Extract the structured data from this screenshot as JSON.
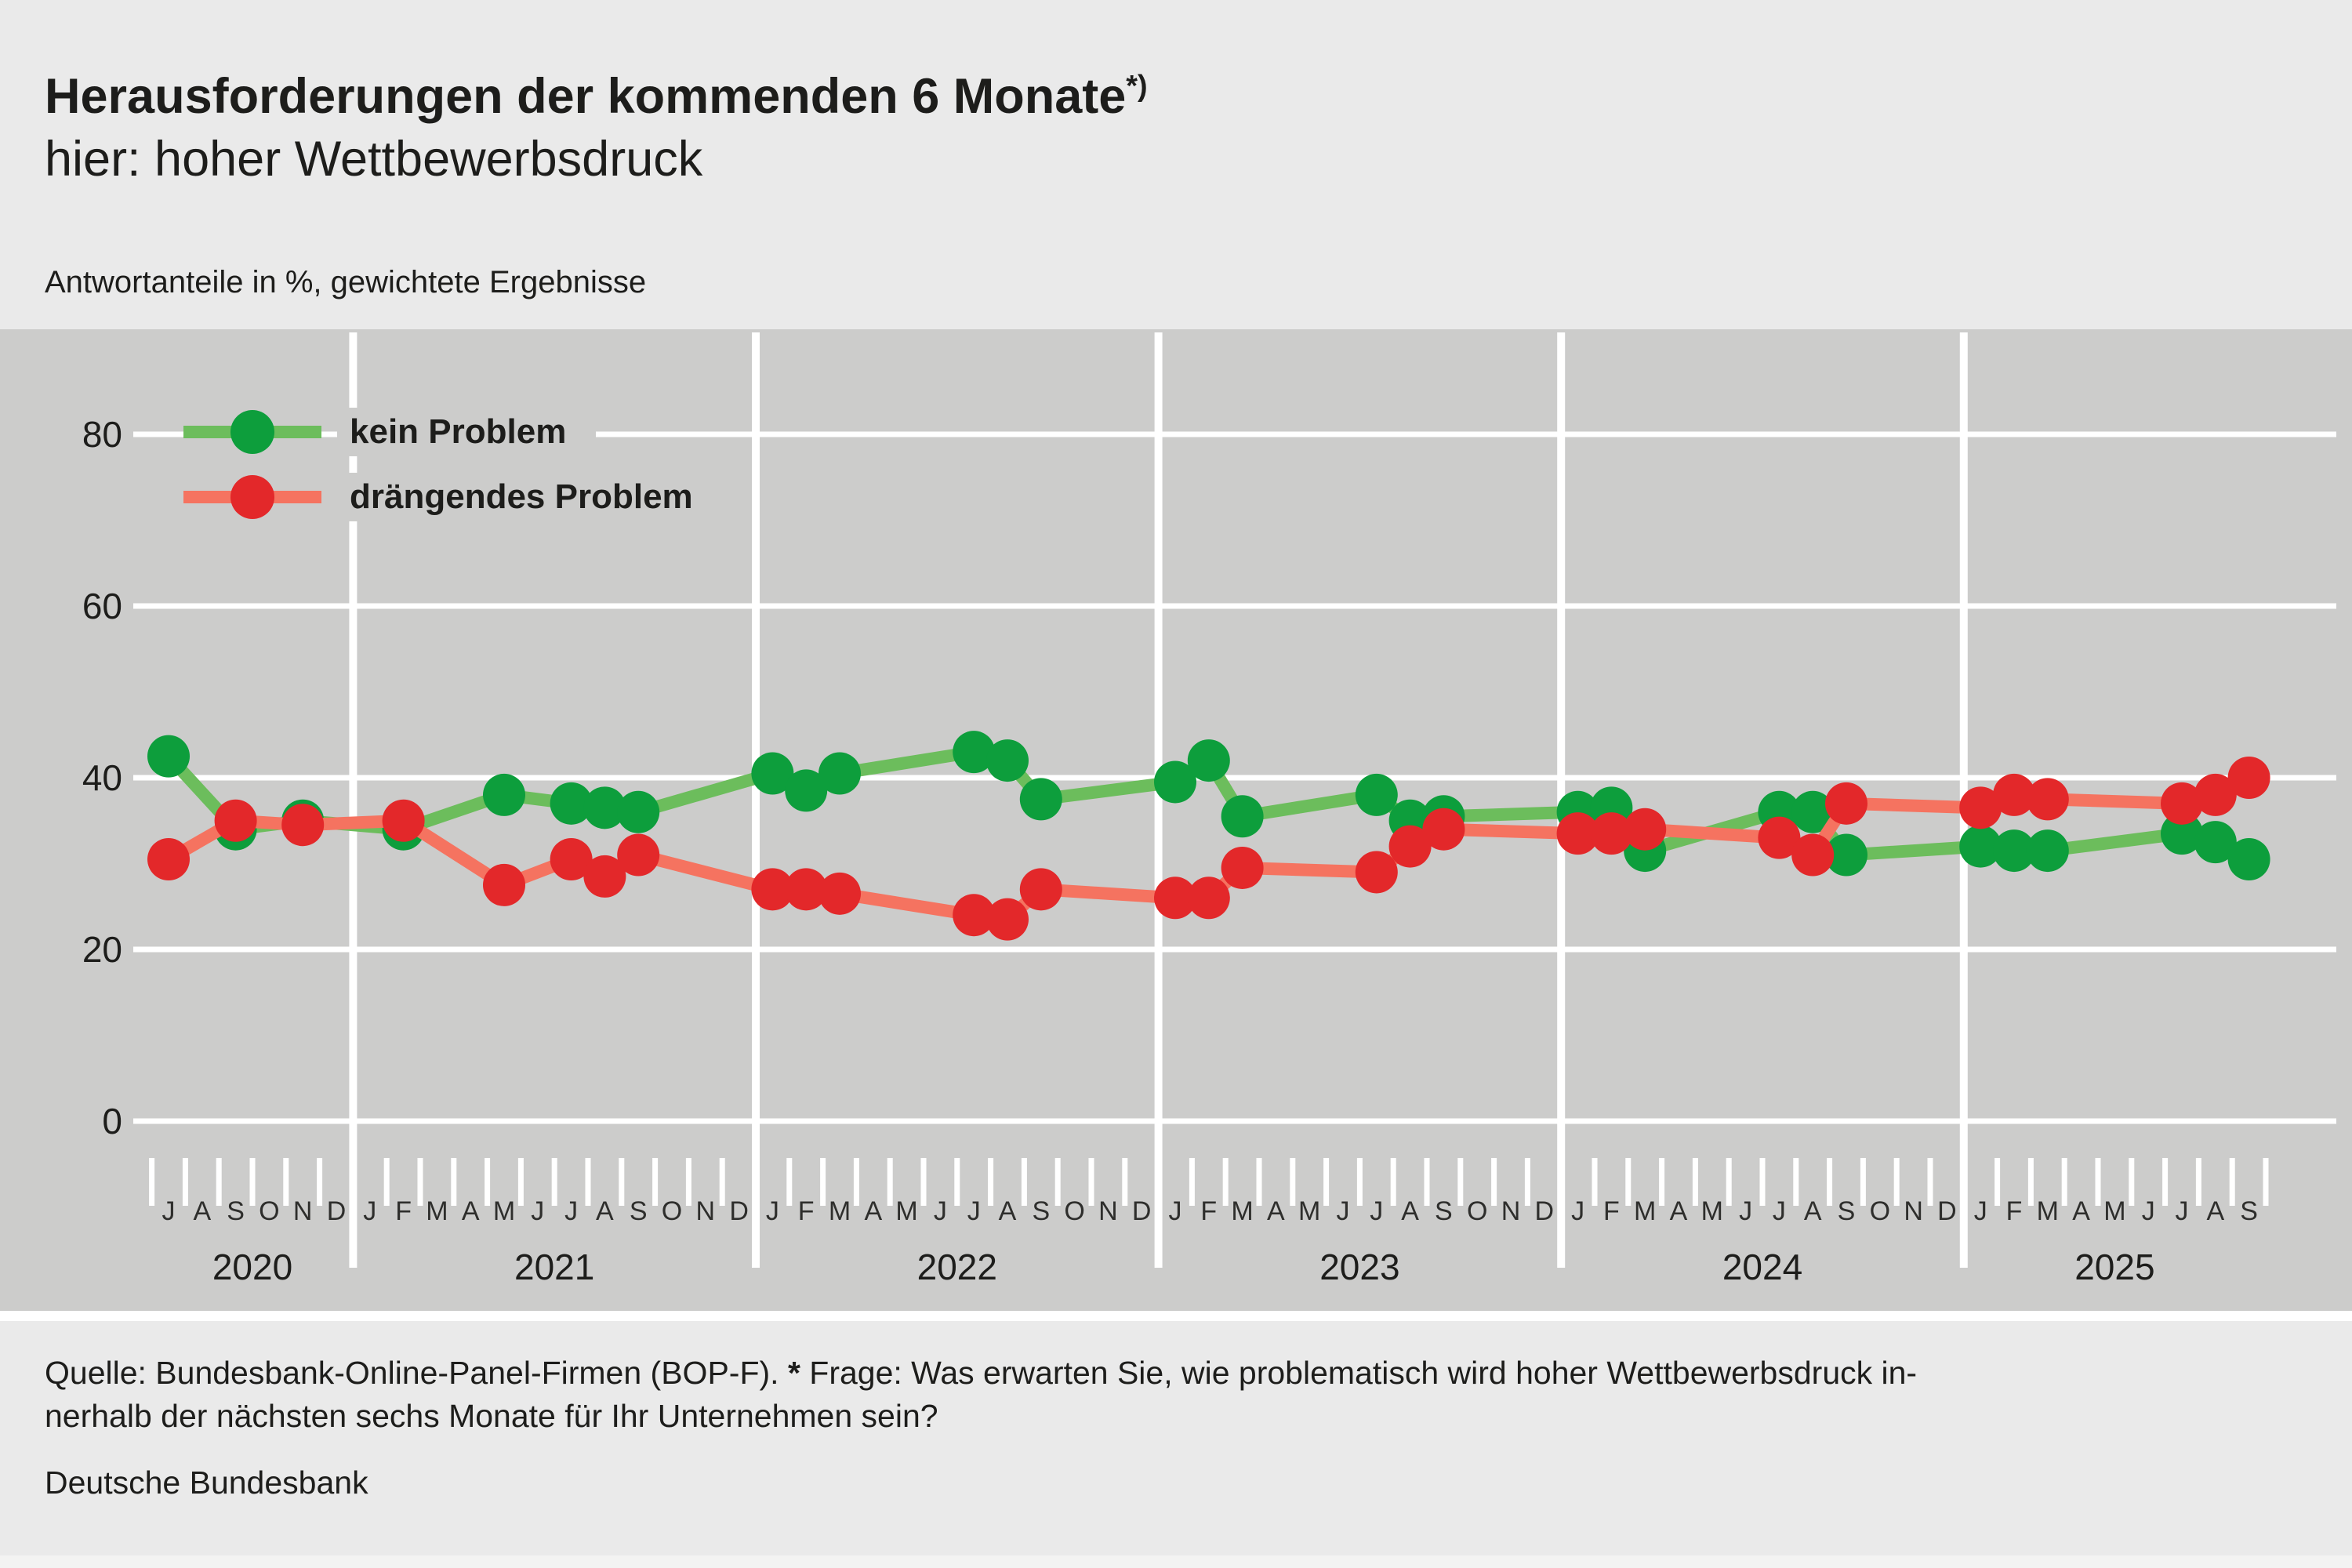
{
  "header": {
    "title": "Herausforderungen der kommenden 6 Monate",
    "title_sup": "*)",
    "subtitle": "hier: hoher Wettbewerbsdruck",
    "note": "Antwortanteile in %, gewichtete Ergebnisse"
  },
  "chart_data": {
    "type": "line",
    "title": "Herausforderungen der kommenden 6 Monate *) — hier: hoher Wettbewerbsdruck",
    "ylabel": "Antwortanteile in %, gewichtete Ergebnisse",
    "ylim": [
      0,
      85
    ],
    "yticks": [
      0,
      20,
      40,
      60,
      80
    ],
    "grid": true,
    "legend_position": "top-left",
    "colors": {
      "band_background": "#cccccb",
      "page_background": "#eaeaea",
      "gridline": "#ffffff",
      "text": "#1d1d1b"
    },
    "years": [
      {
        "label": "2020",
        "letters": "JASOND"
      },
      {
        "label": "2021",
        "letters": "JFMAMJJASOND"
      },
      {
        "label": "2022",
        "letters": "JFMAMJJASOND"
      },
      {
        "label": "2023",
        "letters": "JFMAMJJASOND"
      },
      {
        "label": "2024",
        "letters": "JFMAMJJASOND"
      },
      {
        "label": "2025",
        "letters": "JFMAMJJAS"
      }
    ],
    "series": [
      {
        "name": "kein Problem",
        "line_color": "#6cbd5c",
        "marker_color": "#0d9e3c",
        "points": [
          [
            "2020-07",
            42.5
          ],
          [
            "2020-09",
            34
          ],
          [
            "2020-11",
            35
          ],
          [
            "2021-02",
            34
          ],
          [
            "2021-05",
            38
          ],
          [
            "2021-07",
            37
          ],
          [
            "2021-08",
            36.5
          ],
          [
            "2021-09",
            36
          ],
          [
            "2022-01",
            40.5
          ],
          [
            "2022-02",
            38.5
          ],
          [
            "2022-03",
            40.5
          ],
          [
            "2022-07",
            43
          ],
          [
            "2022-08",
            42
          ],
          [
            "2022-09",
            37.5
          ],
          [
            "2023-01",
            39.5
          ],
          [
            "2023-02",
            42
          ],
          [
            "2023-03",
            35.5
          ],
          [
            "2023-07",
            38
          ],
          [
            "2023-08",
            35
          ],
          [
            "2023-09",
            35.5
          ],
          [
            "2024-01",
            36
          ],
          [
            "2024-02",
            36.5
          ],
          [
            "2024-03",
            31.5
          ],
          [
            "2024-07",
            36
          ],
          [
            "2024-08",
            36
          ],
          [
            "2024-09",
            31
          ],
          [
            "2025-01",
            32
          ],
          [
            "2025-02",
            31.5
          ],
          [
            "2025-03",
            31.5
          ],
          [
            "2025-07",
            33.5
          ],
          [
            "2025-08",
            32.5
          ],
          [
            "2025-09",
            30.5
          ]
        ]
      },
      {
        "name": "drängendes Problem",
        "line_color": "#f57360",
        "marker_color": "#e3282a",
        "points": [
          [
            "2020-07",
            30.5
          ],
          [
            "2020-09",
            35
          ],
          [
            "2020-11",
            34.5
          ],
          [
            "2021-02",
            35
          ],
          [
            "2021-05",
            27.5
          ],
          [
            "2021-07",
            30.5
          ],
          [
            "2021-08",
            28.5
          ],
          [
            "2021-09",
            31
          ],
          [
            "2022-01",
            27
          ],
          [
            "2022-02",
            27
          ],
          [
            "2022-03",
            26.5
          ],
          [
            "2022-07",
            24
          ],
          [
            "2022-08",
            23.5
          ],
          [
            "2022-09",
            27
          ],
          [
            "2023-01",
            26
          ],
          [
            "2023-02",
            26
          ],
          [
            "2023-03",
            29.5
          ],
          [
            "2023-07",
            29
          ],
          [
            "2023-08",
            32
          ],
          [
            "2023-09",
            34
          ],
          [
            "2024-01",
            33.5
          ],
          [
            "2024-02",
            33.5
          ],
          [
            "2024-03",
            34
          ],
          [
            "2024-07",
            33
          ],
          [
            "2024-08",
            31
          ],
          [
            "2024-09",
            37
          ],
          [
            "2025-01",
            36.5
          ],
          [
            "2025-02",
            38
          ],
          [
            "2025-03",
            37.5
          ],
          [
            "2025-07",
            37
          ],
          [
            "2025-08",
            38
          ],
          [
            "2025-09",
            40
          ]
        ]
      }
    ]
  },
  "footer": {
    "line1_prefix": "Quelle: Bundesbank-Online-Panel-Firmen (BOP-F). ",
    "line1_star": "*",
    "line1_rest": " Frage: Was erwarten Sie, wie problematisch wird hoher Wettbewerbsdruck in-",
    "line2": "nerhalb der nächsten sechs Monate für Ihr Unternehmen sein?",
    "source": "Deutsche Bundesbank"
  }
}
